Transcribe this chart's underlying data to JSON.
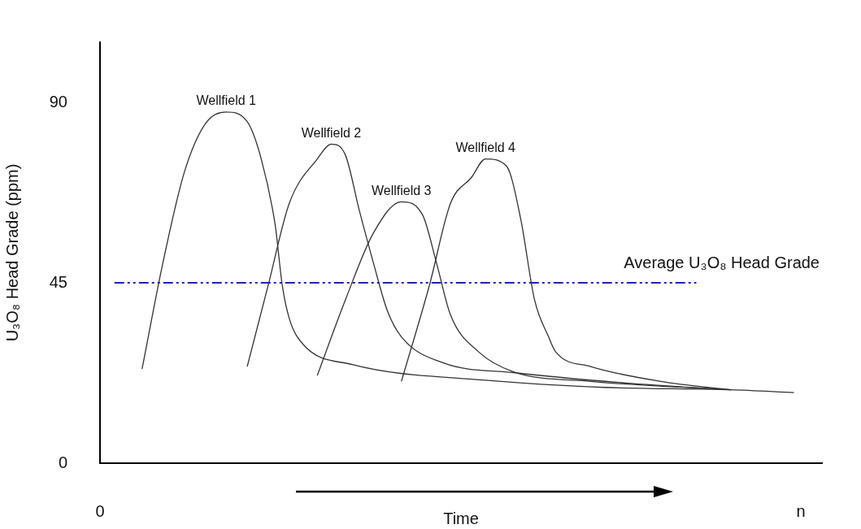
{
  "chart_data": {
    "type": "line",
    "xlabel": "Time",
    "ylabel": "U₃O₈ Head Grade (ppm)",
    "ylim": [
      0,
      105
    ],
    "yticks": [
      0,
      45,
      90
    ],
    "marker": "none",
    "line_style": "solid",
    "categories": [
      "0",
      null,
      null,
      null,
      null,
      null,
      null,
      null,
      null,
      null,
      null,
      null,
      null,
      null,
      null,
      null,
      null,
      null,
      null,
      null,
      null,
      null,
      null,
      null,
      null,
      null,
      null,
      null,
      null,
      null,
      null,
      null,
      null,
      null,
      null,
      null,
      null,
      null,
      null,
      null,
      null,
      null,
      null,
      null,
      null,
      null,
      null,
      null,
      null,
      null,
      null,
      null,
      null,
      null,
      null,
      null,
      null,
      null,
      null,
      null,
      null,
      null,
      null,
      null,
      null,
      null,
      null,
      null,
      null,
      null,
      null,
      null,
      null,
      null,
      null,
      null,
      null,
      null,
      null,
      null,
      null,
      null,
      null,
      null,
      null,
      null,
      null,
      null,
      null,
      null,
      null,
      null,
      null,
      null,
      null,
      null,
      null,
      null,
      null,
      null,
      "n",
      null,
      null,
      null
    ],
    "series": [
      {
        "name": "Wellfield 1",
        "color": "#333333",
        "values": [
          null,
          null,
          null,
          null,
          null,
          null,
          23.5,
          null,
          null,
          50.2,
          null,
          null,
          72.4,
          null,
          null,
          84.6,
          null,
          null,
          87.6,
          null,
          null,
          85.2,
          null,
          75.9,
          null,
          59.3,
          44.4,
          36.1,
          null,
          29.6,
          null,
          null,
          null,
          null,
          null,
          null,
          24.6,
          null,
          null,
          null,
          null,
          null,
          null,
          null,
          null,
          null,
          null,
          null,
          null,
          null,
          null,
          null,
          null,
          null,
          null,
          20.7,
          null,
          null,
          null,
          null,
          null,
          null,
          null,
          null,
          null,
          null,
          null,
          null,
          null,
          null,
          null,
          null,
          18.9,
          null,
          null,
          null,
          null,
          null,
          null,
          null,
          null,
          null,
          null,
          null,
          null,
          null,
          null,
          null,
          null,
          null,
          18.3,
          null,
          null,
          null,
          null,
          null,
          null,
          null,
          null,
          17.6,
          null,
          null,
          null,
          null
        ]
      },
      {
        "name": "Wellfield 2",
        "color": "#333333",
        "values": [
          null,
          null,
          null,
          null,
          null,
          null,
          null,
          null,
          null,
          null,
          null,
          null,
          null,
          null,
          null,
          null,
          null,
          null,
          null,
          null,
          null,
          24.1,
          null,
          null,
          44.4,
          null,
          null,
          64.8,
          null,
          null,
          null,
          75.9,
          null,
          79.6,
          null,
          76.9,
          null,
          63.0,
          null,
          50.0,
          null,
          38.0,
          null,
          31.5,
          null,
          null,
          null,
          null,
          null,
          25.0,
          null,
          null,
          null,
          null,
          null,
          null,
          null,
          null,
          null,
          22.6,
          null,
          null,
          null,
          null,
          null,
          null,
          null,
          null,
          null,
          null,
          null,
          null,
          null,
          null,
          null,
          20.0,
          null,
          null,
          null,
          null,
          null,
          null,
          null,
          null,
          null,
          null,
          null,
          null,
          null,
          null,
          18.3,
          null,
          null,
          null,
          null,
          null,
          null,
          null,
          null,
          null,
          null,
          null,
          null,
          null
        ]
      },
      {
        "name": "Wellfield 3",
        "color": "#333333",
        "values": [
          null,
          null,
          null,
          null,
          null,
          null,
          null,
          null,
          null,
          null,
          null,
          null,
          null,
          null,
          null,
          null,
          null,
          null,
          null,
          null,
          null,
          null,
          null,
          null,
          null,
          null,
          null,
          null,
          null,
          null,
          null,
          21.9,
          null,
          null,
          null,
          40.7,
          null,
          null,
          null,
          57.4,
          null,
          null,
          null,
          65.2,
          null,
          null,
          62.0,
          null,
          50.0,
          null,
          37.0,
          null,
          null,
          null,
          27.8,
          null,
          null,
          null,
          null,
          22.8,
          null,
          null,
          null,
          null,
          null,
          null,
          null,
          null,
          null,
          null,
          20.4,
          null,
          null,
          null,
          null,
          null,
          null,
          null,
          null,
          null,
          null,
          null,
          null,
          null,
          null,
          null,
          null,
          null,
          null,
          null,
          18.3,
          null,
          null,
          null,
          null,
          null,
          null,
          null,
          null,
          null,
          null,
          null,
          null,
          null
        ]
      },
      {
        "name": "Wellfield 4",
        "color": "#333333",
        "values": [
          null,
          null,
          null,
          null,
          null,
          null,
          null,
          null,
          null,
          null,
          null,
          null,
          null,
          null,
          null,
          null,
          null,
          null,
          null,
          null,
          null,
          null,
          null,
          null,
          null,
          null,
          null,
          null,
          null,
          null,
          null,
          null,
          null,
          null,
          null,
          null,
          null,
          null,
          null,
          null,
          null,
          null,
          null,
          20.4,
          null,
          null,
          null,
          44.4,
          null,
          null,
          64.8,
          null,
          null,
          71.3,
          null,
          75.9,
          null,
          null,
          74.1,
          null,
          61.1,
          null,
          40.7,
          null,
          31.5,
          27.8,
          null,
          null,
          null,
          null,
          24.1,
          null,
          null,
          null,
          null,
          null,
          null,
          null,
          null,
          null,
          20.4,
          null,
          null,
          null,
          null,
          null,
          null,
          null,
          null,
          null,
          18.3,
          null,
          null,
          null,
          null,
          null,
          null,
          null,
          null,
          null,
          null,
          null,
          null,
          null
        ]
      }
    ],
    "ref_lines": [
      {
        "axis": "y",
        "value": 45,
        "label": "Average U₃O₈ Head Grade",
        "color": "#2020c0",
        "line_style": "dashed"
      }
    ]
  }
}
